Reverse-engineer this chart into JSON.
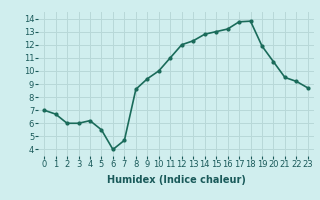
{
  "x": [
    0,
    1,
    2,
    3,
    4,
    5,
    6,
    7,
    8,
    9,
    10,
    11,
    12,
    13,
    14,
    15,
    16,
    17,
    18,
    19,
    20,
    21,
    22,
    23
  ],
  "y": [
    7.0,
    6.7,
    6.0,
    6.0,
    6.2,
    5.5,
    4.0,
    4.7,
    8.6,
    9.4,
    10.0,
    11.0,
    12.0,
    12.3,
    12.8,
    13.0,
    13.2,
    13.75,
    13.8,
    11.9,
    10.7,
    9.5,
    9.2,
    8.7
  ],
  "line_color": "#1a6b5a",
  "marker": "o",
  "marker_size": 2,
  "bg_color": "#d0eeee",
  "grid_color": "#b8d8d8",
  "xlabel": "Humidex (Indice chaleur)",
  "xlabel_fontsize": 7,
  "xlim": [
    -0.5,
    23.5
  ],
  "ylim": [
    3.5,
    14.5
  ],
  "yticks": [
    4,
    5,
    6,
    7,
    8,
    9,
    10,
    11,
    12,
    13,
    14
  ],
  "xticks": [
    0,
    1,
    2,
    3,
    4,
    5,
    6,
    7,
    8,
    9,
    10,
    11,
    12,
    13,
    14,
    15,
    16,
    17,
    18,
    19,
    20,
    21,
    22,
    23
  ],
  "tick_label_fontsize": 6,
  "line_width": 1.2
}
